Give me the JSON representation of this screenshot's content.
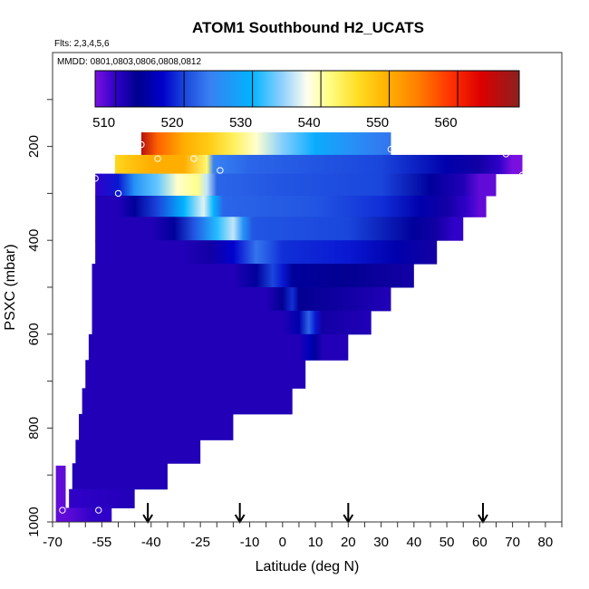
{
  "chart_data": {
    "type": "heatmap",
    "title": "ATOM1 Southbound H2_UCATS",
    "subtitle_flights": "Flts: 2,3,4,5,6",
    "subtitle_dates": "MMDD: 0801,0803,0806,0808,0812",
    "xlabel": "Latitude (deg N)",
    "ylabel": "PSXC (mbar)",
    "xlim": [
      -70,
      85
    ],
    "ylim": [
      1000,
      0
    ],
    "x_ticks": [
      "-70",
      "-55",
      "-40",
      "-25",
      "-10",
      "0",
      "10",
      "20",
      "30",
      "40",
      "50",
      "60",
      "70",
      "80"
    ],
    "x_tick_values": [
      -70,
      -55,
      -40,
      -25,
      -10,
      0,
      10,
      20,
      30,
      40,
      50,
      60,
      70,
      80
    ],
    "y_ticks": [
      "200",
      "400",
      "600",
      "800",
      "1000"
    ],
    "y_tick_values": [
      200,
      400,
      600,
      800,
      1000
    ],
    "colorbar": {
      "range": [
        507,
        569
      ],
      "tick_labels": [
        "510",
        "520",
        "530",
        "540",
        "550",
        "560"
      ],
      "tick_values": [
        510,
        520,
        530,
        540,
        550,
        560
      ]
    },
    "arrows_latitude": [
      -41,
      -13,
      20,
      61
    ],
    "layers": [
      {
        "p_top": 170,
        "p_bot": 218,
        "x0": -43,
        "x1": 33,
        "stops": [
          [
            -43,
            566
          ],
          [
            -38,
            556
          ],
          [
            -30,
            550
          ],
          [
            -22,
            547
          ],
          [
            -15,
            543
          ],
          [
            -8,
            539
          ],
          [
            0,
            534
          ],
          [
            10,
            529
          ],
          [
            20,
            526
          ],
          [
            33,
            523
          ]
        ]
      },
      {
        "p_top": 218,
        "p_bot": 258,
        "x0": -51,
        "x1": 73,
        "stops": [
          [
            -51,
            546
          ],
          [
            -46,
            548
          ],
          [
            -40,
            550
          ],
          [
            -30,
            550
          ],
          [
            -23,
            542
          ],
          [
            -21,
            524
          ],
          [
            -10,
            522
          ],
          [
            10,
            521
          ],
          [
            30,
            520
          ],
          [
            50,
            515
          ],
          [
            60,
            512
          ],
          [
            66,
            510
          ],
          [
            70,
            507
          ]
        ]
      },
      {
        "p_top": 258,
        "p_bot": 305,
        "x0": -57,
        "x1": 65,
        "stops": [
          [
            -57,
            510
          ],
          [
            -50,
            518
          ],
          [
            -45,
            526
          ],
          [
            -38,
            533
          ],
          [
            -32,
            539
          ],
          [
            -26,
            541
          ],
          [
            -23,
            536
          ],
          [
            -20,
            522
          ],
          [
            0,
            521
          ],
          [
            30,
            520
          ],
          [
            45,
            514
          ],
          [
            55,
            511
          ],
          [
            60,
            508
          ]
        ]
      },
      {
        "p_top": 305,
        "p_bot": 350,
        "x0": -57,
        "x1": 62,
        "stops": [
          [
            -57,
            511
          ],
          [
            -50,
            511
          ],
          [
            -45,
            514
          ],
          [
            -38,
            520
          ],
          [
            -30,
            530
          ],
          [
            -24,
            537
          ],
          [
            -21,
            530
          ],
          [
            -18,
            522
          ],
          [
            10,
            521
          ],
          [
            30,
            519
          ],
          [
            42,
            515
          ],
          [
            50,
            512
          ],
          [
            56,
            510
          ],
          [
            60,
            508
          ]
        ]
      },
      {
        "p_top": 350,
        "p_bot": 400,
        "x0": -57,
        "x1": 55,
        "stops": [
          [
            -57,
            511
          ],
          [
            -40,
            511
          ],
          [
            -33,
            514
          ],
          [
            -27,
            521
          ],
          [
            -20,
            531
          ],
          [
            -15,
            536
          ],
          [
            -12,
            526
          ],
          [
            -9,
            521
          ],
          [
            20,
            520
          ],
          [
            40,
            514
          ],
          [
            47,
            512
          ],
          [
            52,
            510
          ]
        ]
      },
      {
        "p_top": 400,
        "p_bot": 450,
        "x0": -57,
        "x1": 47,
        "stops": [
          [
            -57,
            511
          ],
          [
            -30,
            511
          ],
          [
            -22,
            512
          ],
          [
            -15,
            517
          ],
          [
            -8,
            523
          ],
          [
            -4,
            521
          ],
          [
            0,
            519
          ],
          [
            20,
            518
          ],
          [
            35,
            515
          ],
          [
            45,
            512
          ]
        ]
      },
      {
        "p_top": 450,
        "p_bot": 500,
        "x0": -58,
        "x1": 40,
        "stops": [
          [
            -58,
            511
          ],
          [
            -15,
            511
          ],
          [
            -8,
            514
          ],
          [
            -3,
            520
          ],
          [
            0,
            518
          ],
          [
            3,
            514
          ],
          [
            20,
            513
          ],
          [
            38,
            512
          ]
        ]
      },
      {
        "p_top": 500,
        "p_bot": 550,
        "x0": -58,
        "x1": 33,
        "stops": [
          [
            -58,
            511
          ],
          [
            -5,
            511
          ],
          [
            0,
            513
          ],
          [
            3,
            519
          ],
          [
            5,
            513
          ],
          [
            20,
            512
          ],
          [
            32,
            511
          ]
        ]
      },
      {
        "p_top": 550,
        "p_bot": 600,
        "x0": -58,
        "x1": 27,
        "stops": [
          [
            -58,
            511
          ],
          [
            0,
            511
          ],
          [
            5,
            515
          ],
          [
            8,
            522
          ],
          [
            10,
            518
          ],
          [
            12,
            512
          ],
          [
            26,
            511
          ]
        ]
      },
      {
        "p_top": 600,
        "p_bot": 655,
        "x0": -59,
        "x1": 20,
        "stops": [
          [
            -59,
            511
          ],
          [
            5,
            511
          ],
          [
            8,
            516
          ],
          [
            10,
            514
          ],
          [
            12,
            511
          ],
          [
            20,
            511
          ]
        ]
      },
      {
        "p_top": 655,
        "p_bot": 715,
        "x0": -60,
        "x1": 7,
        "stops": [
          [
            -60,
            511
          ],
          [
            7,
            511
          ]
        ]
      },
      {
        "p_top": 715,
        "p_bot": 770,
        "x0": -61,
        "x1": 3,
        "stops": [
          [
            -61,
            511
          ],
          [
            3,
            511
          ]
        ]
      },
      {
        "p_top": 770,
        "p_bot": 825,
        "x0": -62,
        "x1": -15,
        "stops": [
          [
            -62,
            511
          ],
          [
            -15,
            511
          ]
        ]
      },
      {
        "p_top": 825,
        "p_bot": 875,
        "x0": -63,
        "x1": -25,
        "stops": [
          [
            -63,
            511
          ],
          [
            -25,
            511
          ]
        ]
      },
      {
        "p_top": 875,
        "p_bot": 930,
        "x0": -64,
        "x1": -35,
        "stops": [
          [
            -64,
            511
          ],
          [
            -35,
            511
          ]
        ]
      },
      {
        "p_top": 930,
        "p_bot": 970,
        "x0": -65,
        "x1": -45,
        "stops": [
          [
            -65,
            510
          ],
          [
            -45,
            511
          ]
        ]
      },
      {
        "p_top": 970,
        "p_bot": 1000,
        "x0": -66,
        "x1": -52,
        "stops": [
          [
            -66,
            508
          ],
          [
            -62,
            509
          ],
          [
            -58,
            510
          ],
          [
            -52,
            510
          ]
        ]
      }
    ],
    "edge_strips": [
      {
        "p_top": 880,
        "p_bot": 1000,
        "x0": -69,
        "x1": -66,
        "value": 508
      }
    ],
    "sample_points": [
      {
        "lat": -43,
        "p": 196
      },
      {
        "lat": -38,
        "p": 226
      },
      {
        "lat": -27,
        "p": 226
      },
      {
        "lat": -19,
        "p": 251
      },
      {
        "lat": -57,
        "p": 268
      },
      {
        "lat": -50,
        "p": 300
      },
      {
        "lat": 33,
        "p": 206
      },
      {
        "lat": 68,
        "p": 216
      },
      {
        "lat": 73,
        "p": 261
      },
      {
        "lat": 15,
        "p": 676
      },
      {
        "lat": -67,
        "p": 975
      },
      {
        "lat": -56,
        "p": 975
      }
    ]
  }
}
